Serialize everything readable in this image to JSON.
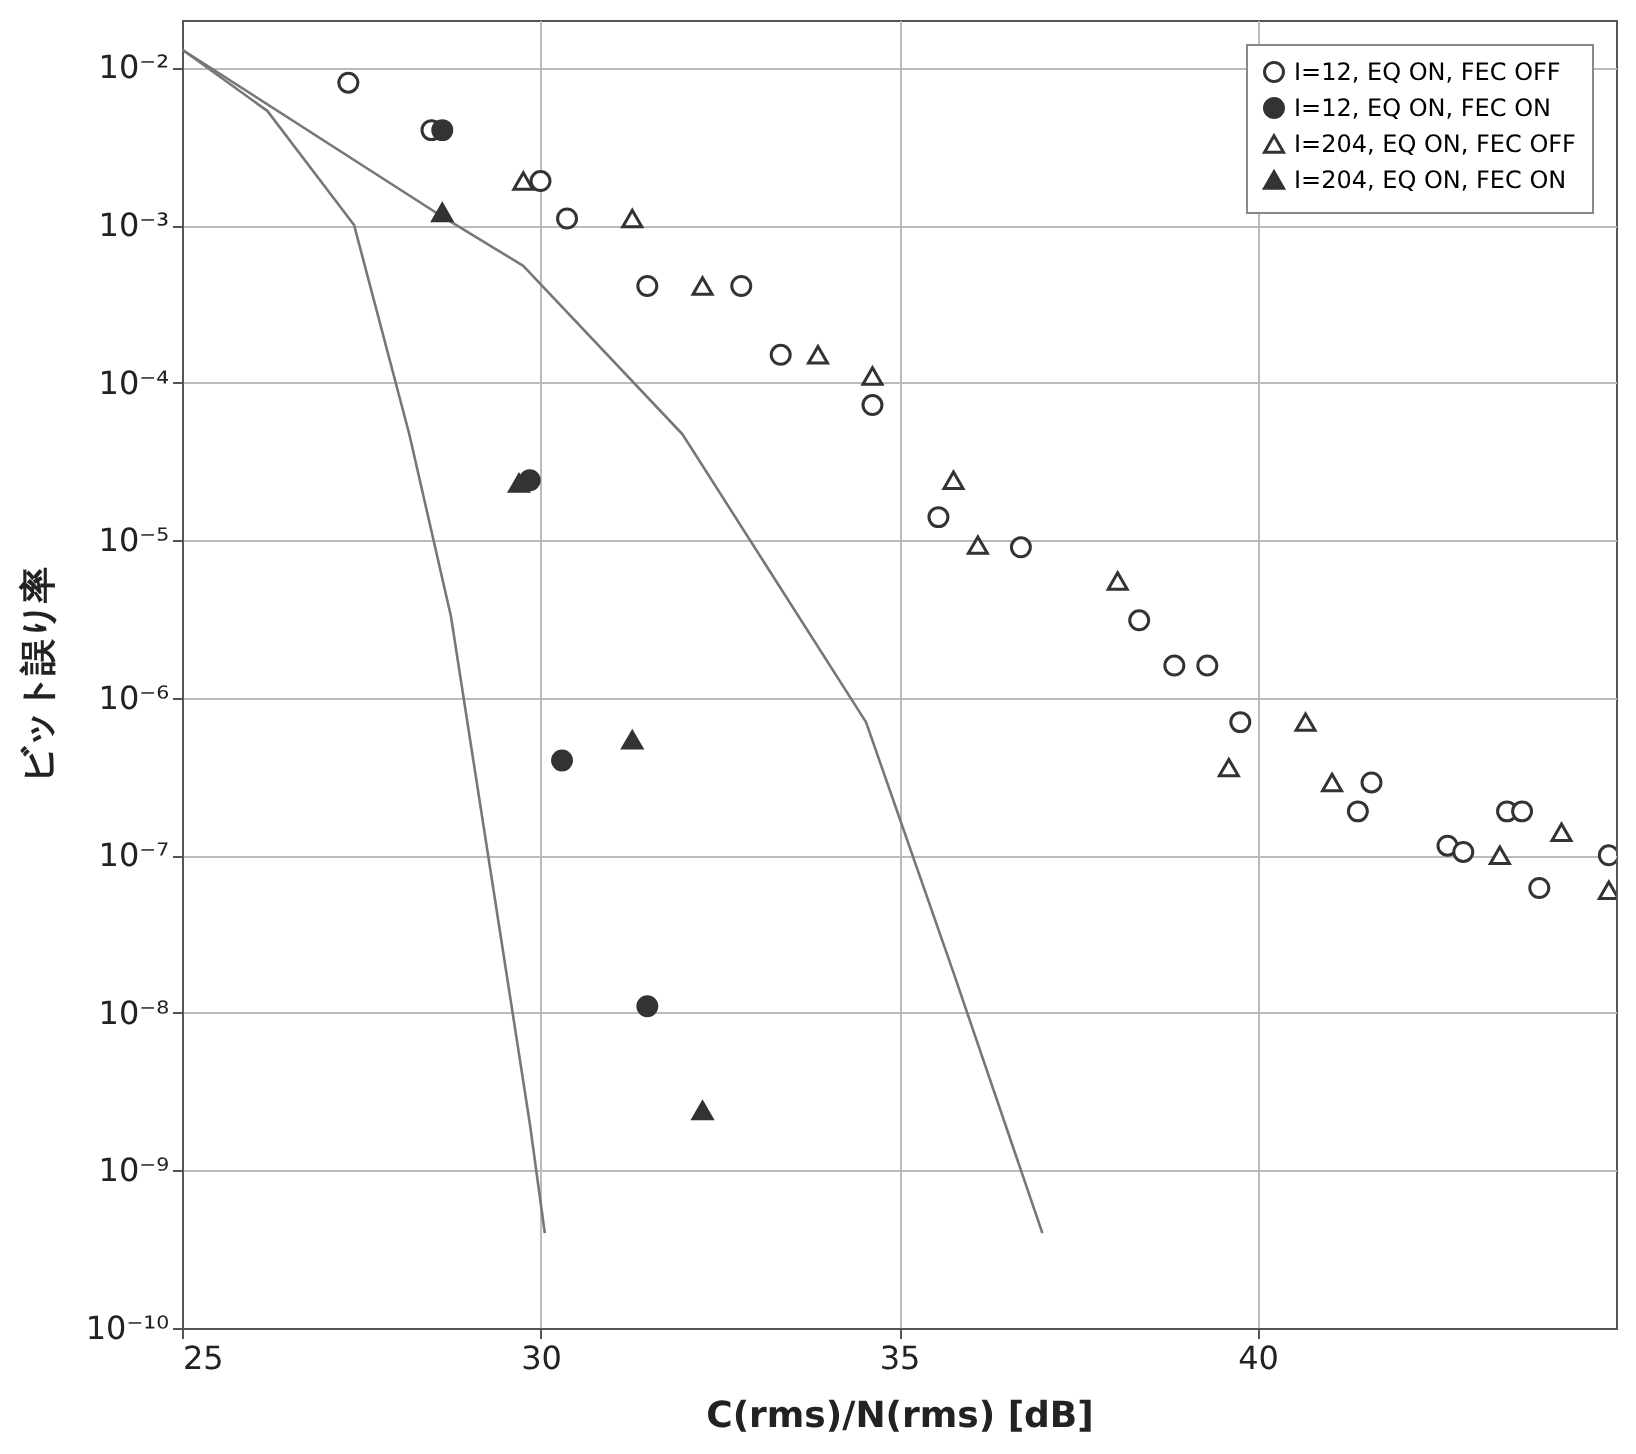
{
  "chart_data": {
    "type": "scatter",
    "xlabel": "C(rms)/N(rms) [dB]",
    "ylabel": "ビット誤り率",
    "log": "y",
    "grid": true,
    "legend": "top right",
    "xlim": [
      25,
      45
    ],
    "xticks": [
      25,
      30,
      35,
      40
    ],
    "ylim": [
      1e-10,
      0.02
    ],
    "yticks": [
      {
        "value": 0.01,
        "label": "10⁻²"
      },
      {
        "value": 0.001,
        "label": "10⁻³"
      },
      {
        "value": 0.0001,
        "label": "10⁻⁴"
      },
      {
        "value": 1e-05,
        "label": "10⁻⁵"
      },
      {
        "value": 1e-06,
        "label": "10⁻⁶"
      },
      {
        "value": 1e-07,
        "label": "10⁻⁷"
      },
      {
        "value": 1e-08,
        "label": "10⁻⁸"
      },
      {
        "value": 1e-09,
        "label": "10⁻⁹"
      },
      {
        "value": 1e-10,
        "label": "10⁻¹⁰"
      }
    ],
    "series": [
      {
        "name": "I=12, EQ ON, FEC OFF",
        "marker": "circle",
        "color": "#ffffff",
        "x": [
          27.32,
          28.48,
          30.0,
          30.37,
          31.49,
          32.8,
          33.35,
          34.63,
          35.55,
          36.7,
          38.35,
          38.84,
          39.3,
          39.76,
          41.59,
          41.4,
          42.65,
          42.87,
          43.48,
          43.69,
          43.93,
          44.9
        ],
        "values": [
          0.008,
          0.004,
          0.0019,
          0.0011,
          0.00041,
          0.00041,
          0.00015,
          7.2e-05,
          1.4e-05,
          9e-06,
          3.1e-06,
          1.6e-06,
          1.6e-06,
          7e-07,
          2.9e-07,
          1.9e-07,
          1.15e-07,
          1.05e-07,
          1.9e-07,
          1.9e-07,
          6.2e-08,
          1e-07
        ]
      },
      {
        "name": "I=12, EQ ON, FEC ON",
        "marker": "circle",
        "color": "#333333",
        "x": [
          28.63,
          29.85,
          30.3,
          31.49
        ],
        "values": [
          0.004,
          2.4e-05,
          4e-07,
          1.1e-08
        ]
      },
      {
        "name": "I=204, EQ ON, FEC OFF",
        "marker": "triangle",
        "color": "#ffffff",
        "x": [
          29.76,
          31.28,
          32.26,
          33.87,
          34.63,
          35.76,
          36.1,
          38.05,
          39.6,
          40.67,
          41.04,
          43.38,
          44.24,
          44.9
        ],
        "values": [
          0.0019,
          0.0011,
          0.00041,
          0.00015,
          0.00011,
          2.4e-05,
          9.3e-06,
          5.5e-06,
          3.6e-07,
          7e-07,
          2.9e-07,
          1e-07,
          1.4e-07,
          6e-08
        ]
      },
      {
        "name": "I=204, EQ ON, FEC ON",
        "marker": "triangle",
        "color": "#333333",
        "x": [
          28.63,
          29.7,
          31.28,
          32.26
        ],
        "values": [
          0.0012,
          2.3e-05,
          5.4e-07,
          2.4e-09
        ]
      },
      {
        "type": "line",
        "marker": "none",
        "line_style": "solid",
        "color": "#777777",
        "x": [
          25,
          28.54,
          29.76,
          31.98,
          34.54,
          35.76,
          37.0
        ],
        "values": [
          0.013,
          0.0012,
          0.00055,
          4.7e-05,
          7e-07,
          1.8e-08,
          4e-10
        ]
      },
      {
        "type": "line",
        "marker": "none",
        "line_style": "solid",
        "color": "#777777",
        "x": [
          25,
          26.19,
          27.4,
          28.17,
          28.75,
          29.85,
          30.06
        ],
        "values": [
          0.013,
          0.0053,
          0.001,
          4.7e-05,
          3.3e-06,
          2e-09,
          4e-10
        ]
      }
    ]
  }
}
